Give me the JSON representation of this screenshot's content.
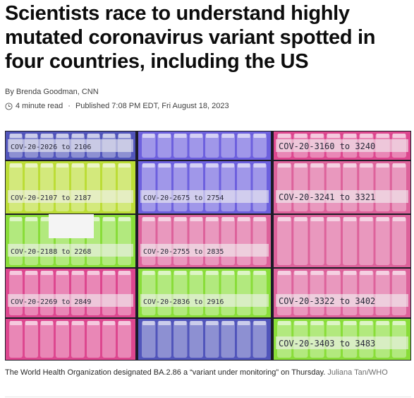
{
  "article": {
    "headline_line1": "Scientists race to understand highly",
    "headline_line2": "mutated coronavirus variant spotted in",
    "headline_line3": "four countries, including the US",
    "byline": "By Brenda Goodman, CNN",
    "read_time": "4 minute read",
    "separator": "·",
    "published": "Published 7:08 PM EDT, Fri August 18, 2023",
    "clock_icon": "clock-icon"
  },
  "photo": {
    "caption": "The World Health Organization designated BA.2.86 a “variant under monitoring” on Thursday.",
    "credit": "Juliana Tan/WHO",
    "tray_colors": [
      "#5a5fd6",
      "#d8ff3a",
      "#ff4fa2",
      "#9cff3d",
      "#7b6cff",
      "#ff6fb0"
    ],
    "labels": [
      "COV-20-2026 to 2106",
      "COV-20-2107 to 2187",
      "COV-20-2188 to 2268",
      "COV-20-2269 to 2849",
      "COV-20-2675 to 2754",
      "COV-20-2755 to 2835",
      "COV-20-2836 to 2916",
      "COV-20-3160 to 3240",
      "COV-20-3241 to 3321",
      "COV-20-3322 to 3402",
      "COV-20-3403 to 3483"
    ]
  }
}
